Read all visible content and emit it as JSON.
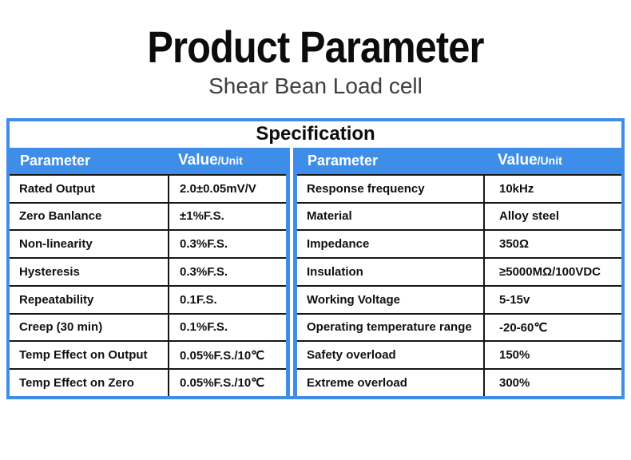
{
  "page": {
    "title": "Product Parameter",
    "subtitle": "Shear Bean Load cell"
  },
  "table": {
    "title": "Specification",
    "header": {
      "parameter_label": "Parameter",
      "value_label": "Value",
      "unit_label": "/Unit"
    },
    "left_rows": [
      {
        "parameter": "Rated Output",
        "value": "2.0±0.05mV/V"
      },
      {
        "parameter": "Zero Banlance",
        "value": "±1%F.S."
      },
      {
        "parameter": "Non-linearity",
        "value": "0.3%F.S."
      },
      {
        "parameter": "Hysteresis",
        "value": "0.3%F.S."
      },
      {
        "parameter": "Repeatability",
        "value": "0.1F.S."
      },
      {
        "parameter": "Creep (30 min)",
        "value": "0.1%F.S."
      },
      {
        "parameter": "Temp Effect on Output",
        "value": "0.05%F.S./10℃"
      },
      {
        "parameter": "Temp Effect on Zero",
        "value": "0.05%F.S./10℃"
      }
    ],
    "right_rows": [
      {
        "parameter": "Response frequency",
        "value": "10kHz"
      },
      {
        "parameter": "Material",
        "value": "Alloy steel"
      },
      {
        "parameter": "Impedance",
        "value": "350Ω"
      },
      {
        "parameter": "Insulation",
        "value": "≥5000MΩ/100VDC"
      },
      {
        "parameter": "Working Voltage",
        "value": "5-15v"
      },
      {
        "parameter": "Operating temperature range",
        "value": "-20-60℃"
      },
      {
        "parameter": "Safety overload",
        "value": "150%"
      },
      {
        "parameter": "Extreme overload",
        "value": "300%"
      }
    ]
  },
  "colors": {
    "accent_blue": "#3e8ee9",
    "header_text": "#ffffff",
    "body_text": "#101010",
    "subtitle_text": "#3e3e3e",
    "row_line": "#161616"
  }
}
